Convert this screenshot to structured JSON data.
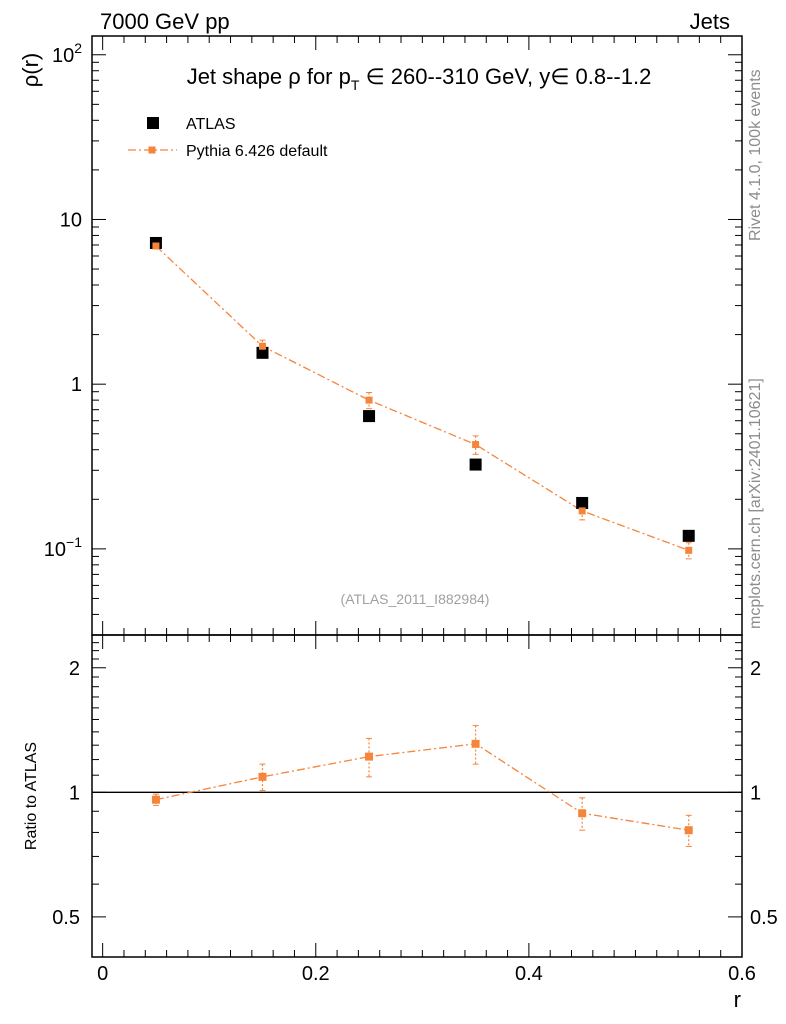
{
  "header": {
    "left": "7000 GeV pp",
    "right": "Jets"
  },
  "side_labels": {
    "rivet": "Rivet 4.1.0,  100k events",
    "mcplots": "mcplots.cern.ch [arXiv:2401.10621]"
  },
  "chart_data": {
    "type": "scatter",
    "title": "Jet shape ρ for p_T ∈ 260--310 GeV, y∈ 0.8--1.2",
    "analysis_tag": "(ATLAS_2011_I882984)",
    "xlabel": "r",
    "ylabel": "ρ(r)",
    "ratio_ylabel": "Ratio to ATLAS",
    "xlim": [
      -0.01,
      0.6
    ],
    "ylim": [
      0.03,
      130
    ],
    "yscale": "log",
    "ratio_ylim": [
      0.4,
      2.4
    ],
    "ratio_yscale": "log",
    "x_ticks": [
      {
        "value": 0,
        "label": "0"
      },
      {
        "value": 0.2,
        "label": "0.2"
      },
      {
        "value": 0.4,
        "label": "0.4"
      },
      {
        "value": 0.6,
        "label": "0.6"
      }
    ],
    "y_ticks": [
      {
        "value": 100,
        "base": "10",
        "exp": "2"
      },
      {
        "value": 10,
        "base": "10",
        "exp": ""
      },
      {
        "value": 1,
        "base": "1",
        "exp": ""
      },
      {
        "value": 0.1,
        "base": "10",
        "exp": "−1"
      }
    ],
    "ratio_ticks": [
      {
        "value": 2,
        "label": "2"
      },
      {
        "value": 1,
        "label": "1"
      },
      {
        "value": 0.5,
        "label": "0.5"
      }
    ],
    "legend": [
      {
        "name": "ATLAS",
        "marker": "square",
        "color": "#000000"
      },
      {
        "name": "Pythia 6.426 default",
        "marker": "square-dashdot",
        "color": "#f5853a"
      }
    ],
    "series": [
      {
        "name": "ATLAS",
        "x": [
          0.05,
          0.15,
          0.25,
          0.35,
          0.45,
          0.55
        ],
        "y": [
          7.2,
          1.55,
          0.64,
          0.325,
          0.19,
          0.12
        ],
        "yerr": [
          0.2,
          0.05,
          0.03,
          0.015,
          0.012,
          0.008
        ]
      },
      {
        "name": "Pythia 6.426 default",
        "x": [
          0.05,
          0.15,
          0.25,
          0.35,
          0.45,
          0.55
        ],
        "y": [
          6.9,
          1.7,
          0.8,
          0.43,
          0.17,
          0.098
        ],
        "yerr": [
          0.15,
          0.15,
          0.09,
          0.055,
          0.02,
          0.011
        ]
      }
    ],
    "ratio": {
      "x": [
        0.05,
        0.15,
        0.25,
        0.35,
        0.45,
        0.55
      ],
      "y": [
        0.96,
        1.09,
        1.22,
        1.31,
        0.89,
        0.81
      ],
      "yerr": [
        0.03,
        0.08,
        0.13,
        0.14,
        0.08,
        0.07
      ],
      "reference": 1
    }
  }
}
